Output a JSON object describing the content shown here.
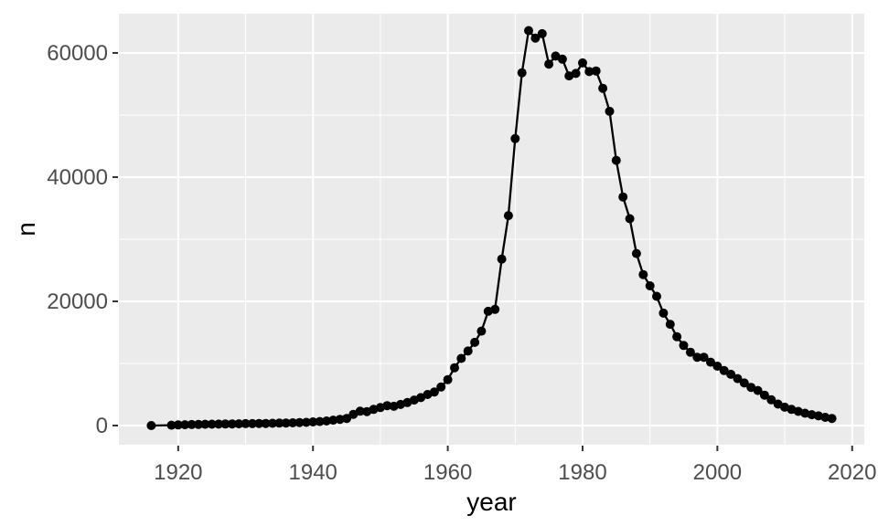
{
  "chart_data": {
    "type": "scatter",
    "subtype": "scatter-with-line",
    "title": "",
    "xlabel": "year",
    "ylabel": "n",
    "legend": "none",
    "grid": "major-and-minor-white-on-gray",
    "xlim": [
      1911.2,
      2021.8
    ],
    "ylim": [
      -3090,
      66320
    ],
    "x_major_ticks": [
      1920,
      1940,
      1960,
      1980,
      2000,
      2020
    ],
    "x_minor_ticks": [
      1930,
      1950,
      1970,
      1990,
      2010
    ],
    "y_major_ticks": [
      0,
      20000,
      40000,
      60000
    ],
    "y_minor_ticks": [
      10000,
      30000,
      50000
    ],
    "x_tick_labels": [
      "1920",
      "1940",
      "1960",
      "1980",
      "2000",
      "2020"
    ],
    "y_tick_labels": [
      "0",
      "20000",
      "40000",
      "60000"
    ],
    "x": [
      1916,
      1919,
      1920,
      1921,
      1922,
      1923,
      1924,
      1925,
      1926,
      1927,
      1928,
      1929,
      1930,
      1931,
      1932,
      1933,
      1934,
      1935,
      1936,
      1937,
      1938,
      1939,
      1940,
      1941,
      1942,
      1943,
      1944,
      1945,
      1946,
      1947,
      1948,
      1949,
      1950,
      1951,
      1952,
      1953,
      1954,
      1955,
      1956,
      1957,
      1958,
      1959,
      1960,
      1961,
      1962,
      1963,
      1964,
      1965,
      1966,
      1967,
      1968,
      1969,
      1970,
      1971,
      1972,
      1973,
      1974,
      1975,
      1976,
      1977,
      1978,
      1979,
      1980,
      1981,
      1982,
      1983,
      1984,
      1985,
      1986,
      1987,
      1988,
      1989,
      1990,
      1991,
      1992,
      1993,
      1994,
      1995,
      1996,
      1997,
      1998,
      1999,
      2000,
      2001,
      2002,
      2003,
      2004,
      2005,
      2006,
      2007,
      2008,
      2009,
      2010,
      2011,
      2012,
      2013,
      2014,
      2015,
      2016,
      2017
    ],
    "y": [
      5,
      60,
      100,
      130,
      160,
      180,
      200,
      220,
      240,
      250,
      260,
      280,
      300,
      310,
      330,
      340,
      360,
      390,
      410,
      440,
      480,
      520,
      580,
      640,
      730,
      860,
      1000,
      1150,
      1800,
      2300,
      2250,
      2600,
      2900,
      3200,
      3100,
      3400,
      3700,
      4100,
      4500,
      5000,
      5400,
      6200,
      7400,
      9300,
      10800,
      12000,
      13400,
      15200,
      18400,
      18700,
      26800,
      33800,
      46200,
      56800,
      63600,
      62400,
      63100,
      58200,
      59500,
      59000,
      56300,
      56700,
      58400,
      57000,
      57100,
      54300,
      50600,
      42700,
      36800,
      33300,
      27700,
      24300,
      22500,
      20800,
      18100,
      16300,
      14300,
      12900,
      11800,
      11000,
      11000,
      10200,
      9550,
      8850,
      8250,
      7550,
      6850,
      6150,
      5650,
      4900,
      4150,
      3450,
      2950,
      2600,
      2280,
      1980,
      1750,
      1550,
      1320,
      1150
    ],
    "colors": {
      "panel_background": "#EBEBEB",
      "grid_major": "#FFFFFF",
      "grid_minor": "#FFFFFF",
      "point": "#000000",
      "line": "#000000",
      "tick_mark": "#333333",
      "tick_label": "#4D4D4D",
      "axis_title": "#000000",
      "page_background": "#FFFFFF"
    }
  }
}
